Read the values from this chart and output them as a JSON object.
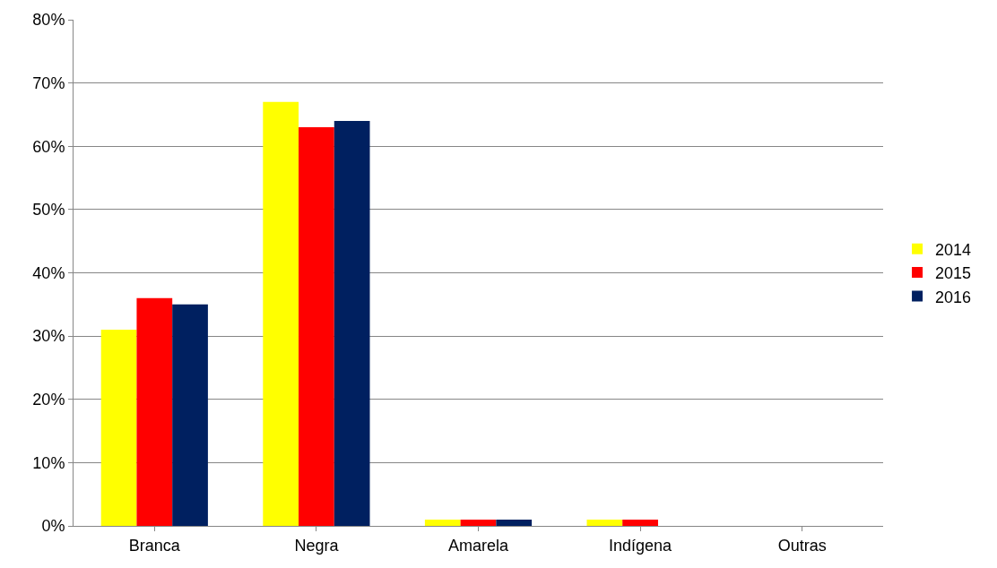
{
  "chart_data": {
    "type": "bar",
    "categories": [
      "Branca",
      "Negra",
      "Amarela",
      "Indígena",
      "Outras"
    ],
    "series": [
      {
        "name": "2014",
        "color": "#ffff00",
        "values": [
          31,
          67,
          1,
          1,
          0
        ]
      },
      {
        "name": "2015",
        "color": "#ff0000",
        "values": [
          36,
          63,
          1,
          1,
          0
        ]
      },
      {
        "name": "2016",
        "color": "#002060",
        "values": [
          35,
          64,
          1,
          0,
          0
        ]
      }
    ],
    "ylim": [
      0,
      80
    ],
    "yticks": [
      {
        "value": 0,
        "label": "0%"
      },
      {
        "value": 10,
        "label": "10%"
      },
      {
        "value": 20,
        "label": "20%"
      },
      {
        "value": 30,
        "label": "30%"
      },
      {
        "value": 40,
        "label": "40%"
      },
      {
        "value": 50,
        "label": "50%"
      },
      {
        "value": 60,
        "label": "60%"
      },
      {
        "value": 70,
        "label": "70%"
      },
      {
        "value": 80,
        "label": "80%"
      }
    ],
    "grid": "y",
    "legend": "right"
  }
}
